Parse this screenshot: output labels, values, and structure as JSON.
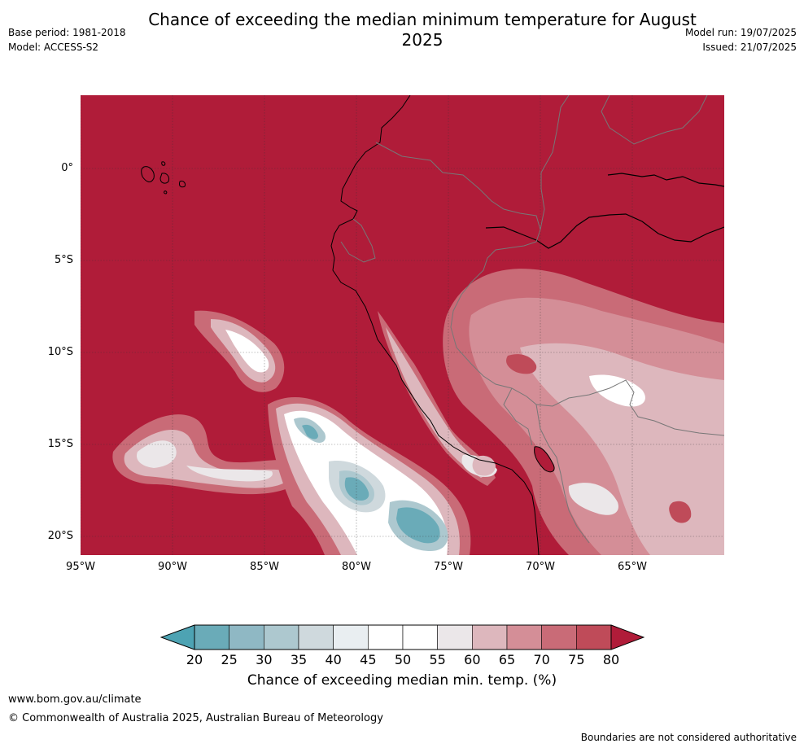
{
  "title": "Chance of exceeding the median minimum temperature for August 2025",
  "meta": {
    "base_period": "Base period: 1981-2018",
    "model": "Model: ACCESS-S2",
    "model_run": "Model run: 19/07/2025",
    "issued": "Issued: 21/07/2025"
  },
  "map": {
    "lat_ticks": [
      {
        "label": "0°",
        "value": 0
      },
      {
        "label": "5°S",
        "value": -5
      },
      {
        "label": "10°S",
        "value": -10
      },
      {
        "label": "15°S",
        "value": -15
      },
      {
        "label": "20°S",
        "value": -20
      }
    ],
    "lon_ticks": [
      {
        "label": "95°W",
        "value": -95
      },
      {
        "label": "90°W",
        "value": -90
      },
      {
        "label": "85°W",
        "value": -85
      },
      {
        "label": "80°W",
        "value": -80
      },
      {
        "label": "75°W",
        "value": -75
      },
      {
        "label": "70°W",
        "value": -70
      },
      {
        "label": "65°W",
        "value": -65
      }
    ],
    "extent": {
      "lon": [
        -95,
        -60
      ],
      "lat": [
        -21,
        4
      ]
    },
    "background_color": "#b01c39"
  },
  "colorbar": {
    "label": "Chance of exceeding median min. temp. (%)",
    "ticks": [
      "20",
      "25",
      "30",
      "35",
      "40",
      "45",
      "50",
      "55",
      "60",
      "65",
      "70",
      "75",
      "80"
    ],
    "colors": [
      "#6aabb8",
      "#8fb8c4",
      "#adc8cf",
      "#cfd9dd",
      "#e9eef1",
      "#ffffff",
      "#ffffff",
      "#ebe7e9",
      "#ddb7bd",
      "#d48e97",
      "#c96b77",
      "#bf4b59"
    ],
    "under_color": "#4da3b3",
    "over_color": "#b01c39"
  },
  "footer": {
    "site": "www.bom.gov.au/climate",
    "copyright": "© Commonwealth of Australia 2025, Australian Bureau of Meteorology",
    "disclaimer": "Boundaries are not considered authoritative"
  }
}
